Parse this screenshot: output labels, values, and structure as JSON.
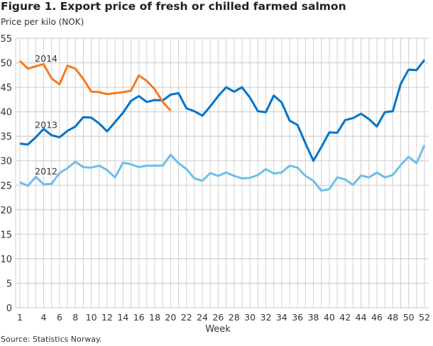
{
  "chart_data": {
    "type": "line",
    "title": "Figure 1. Export price of fresh or chilled farmed salmon",
    "ylabel": "Price per kilo (NOK)",
    "xlabel": "Week",
    "source": "Source: Statistics Norway.",
    "ylim": [
      0,
      55
    ],
    "yticks": [
      0,
      5,
      10,
      15,
      20,
      25,
      30,
      35,
      40,
      45,
      50,
      55
    ],
    "xlim": [
      1,
      52
    ],
    "xticks": [
      1,
      4,
      6,
      8,
      10,
      12,
      14,
      16,
      18,
      20,
      22,
      24,
      26,
      28,
      30,
      32,
      34,
      36,
      38,
      40,
      42,
      44,
      46,
      48,
      50,
      52
    ],
    "grid": true,
    "series": [
      {
        "name": "2012",
        "color": "#6cbfea",
        "label_week": 2,
        "label_value": 27.5,
        "values": [
          25.6,
          24.9,
          26.7,
          25.2,
          25.3,
          27.5,
          28.5,
          29.8,
          28.7,
          28.6,
          29.0,
          28.1,
          26.6,
          29.6,
          29.3,
          28.7,
          29.0,
          29.0,
          29.0,
          31.2,
          29.5,
          28.3,
          26.4,
          25.9,
          27.5,
          26.9,
          27.6,
          26.9,
          26.4,
          26.5,
          27.1,
          28.3,
          27.4,
          27.6,
          29.0,
          28.6,
          26.9,
          25.9,
          23.9,
          24.2,
          26.6,
          26.2,
          25.1,
          27.0,
          26.6,
          27.6,
          26.6,
          27.1,
          29.1,
          30.8,
          29.5,
          33.2
        ]
      },
      {
        "name": "2013",
        "color": "#0074c8",
        "label_week": 2,
        "label_value": 37.0,
        "values": [
          33.5,
          33.3,
          34.8,
          36.5,
          35.2,
          34.8,
          36.1,
          37.0,
          38.9,
          38.8,
          37.6,
          36.0,
          37.9,
          39.8,
          42.2,
          43.2,
          42.0,
          42.4,
          42.3,
          43.5,
          43.8,
          40.7,
          40.1,
          39.2,
          41.1,
          43.2,
          45.0,
          44.1,
          45.0,
          42.9,
          40.1,
          39.9,
          43.3,
          41.9,
          38.2,
          37.3,
          33.5,
          30.0,
          32.8,
          35.8,
          35.7,
          38.3,
          38.7,
          39.6,
          38.5,
          37.0,
          39.9,
          40.1,
          45.7,
          48.6,
          48.5,
          50.6
        ]
      },
      {
        "name": "2014",
        "color": "#f47a20",
        "label_week": 2,
        "label_value": 50.5,
        "values": [
          50.4,
          48.8,
          49.3,
          49.7,
          46.8,
          45.6,
          49.4,
          48.8,
          46.7,
          44.1,
          44.0,
          43.6,
          43.8,
          44.0,
          44.3,
          47.4,
          46.3,
          44.6,
          42.0,
          40.2
        ]
      }
    ]
  }
}
